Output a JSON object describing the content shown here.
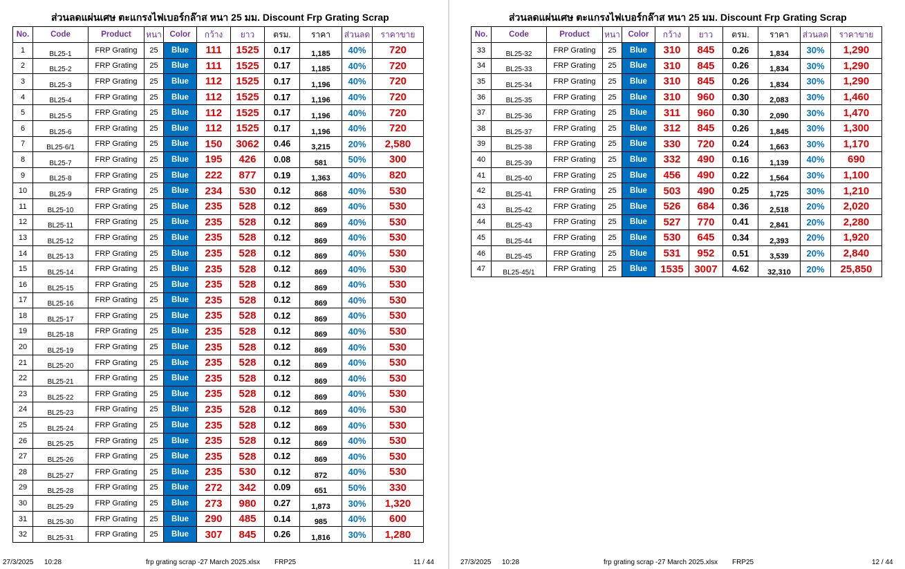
{
  "title": "ส่วนลดแผ่นเศษ ตะแกรงไฟเบอร์กล๊าส หนา 25 มม.  Discount Frp Grating Scrap",
  "headers": {
    "no": "No.",
    "code": "Code",
    "product": "Product",
    "thick": "หนา",
    "color": "Color",
    "width": "กว้าง",
    "length": "ยาว",
    "sqm": "ตรม.",
    "price": "ราคา",
    "discount": "ส่วนลด",
    "sale": "ราคาขาย"
  },
  "left_rows": [
    [
      "1",
      "BL25-1",
      "FRP Grating",
      "25",
      "Blue",
      "111",
      "1525",
      "0.17",
      "1,185",
      "40%",
      "720"
    ],
    [
      "2",
      "BL25-2",
      "FRP Grating",
      "25",
      "Blue",
      "111",
      "1525",
      "0.17",
      "1,185",
      "40%",
      "720"
    ],
    [
      "3",
      "BL25-3",
      "FRP Grating",
      "25",
      "Blue",
      "112",
      "1525",
      "0.17",
      "1,196",
      "40%",
      "720"
    ],
    [
      "4",
      "BL25-4",
      "FRP Grating",
      "25",
      "Blue",
      "112",
      "1525",
      "0.17",
      "1,196",
      "40%",
      "720"
    ],
    [
      "5",
      "BL25-5",
      "FRP Grating",
      "25",
      "Blue",
      "112",
      "1525",
      "0.17",
      "1,196",
      "40%",
      "720"
    ],
    [
      "6",
      "BL25-6",
      "FRP Grating",
      "25",
      "Blue",
      "112",
      "1525",
      "0.17",
      "1,196",
      "40%",
      "720"
    ],
    [
      "7",
      "BL25-6/1",
      "FRP Grating",
      "25",
      "Blue",
      "150",
      "3062",
      "0.46",
      "3,215",
      "20%",
      "2,580"
    ],
    [
      "8",
      "BL25-7",
      "FRP Grating",
      "25",
      "Blue",
      "195",
      "426",
      "0.08",
      "581",
      "50%",
      "300"
    ],
    [
      "9",
      "BL25-8",
      "FRP Grating",
      "25",
      "Blue",
      "222",
      "877",
      "0.19",
      "1,363",
      "40%",
      "820"
    ],
    [
      "10",
      "BL25-9",
      "FRP Grating",
      "25",
      "Blue",
      "234",
      "530",
      "0.12",
      "868",
      "40%",
      "530"
    ],
    [
      "11",
      "BL25-10",
      "FRP Grating",
      "25",
      "Blue",
      "235",
      "528",
      "0.12",
      "869",
      "40%",
      "530"
    ],
    [
      "12",
      "BL25-11",
      "FRP Grating",
      "25",
      "Blue",
      "235",
      "528",
      "0.12",
      "869",
      "40%",
      "530"
    ],
    [
      "13",
      "BL25-12",
      "FRP Grating",
      "25",
      "Blue",
      "235",
      "528",
      "0.12",
      "869",
      "40%",
      "530"
    ],
    [
      "14",
      "BL25-13",
      "FRP Grating",
      "25",
      "Blue",
      "235",
      "528",
      "0.12",
      "869",
      "40%",
      "530"
    ],
    [
      "15",
      "BL25-14",
      "FRP Grating",
      "25",
      "Blue",
      "235",
      "528",
      "0.12",
      "869",
      "40%",
      "530"
    ],
    [
      "16",
      "BL25-15",
      "FRP Grating",
      "25",
      "Blue",
      "235",
      "528",
      "0.12",
      "869",
      "40%",
      "530"
    ],
    [
      "17",
      "BL25-16",
      "FRP Grating",
      "25",
      "Blue",
      "235",
      "528",
      "0.12",
      "869",
      "40%",
      "530"
    ],
    [
      "18",
      "BL25-17",
      "FRP Grating",
      "25",
      "Blue",
      "235",
      "528",
      "0.12",
      "869",
      "40%",
      "530"
    ],
    [
      "19",
      "BL25-18",
      "FRP Grating",
      "25",
      "Blue",
      "235",
      "528",
      "0.12",
      "869",
      "40%",
      "530"
    ],
    [
      "20",
      "BL25-19",
      "FRP Grating",
      "25",
      "Blue",
      "235",
      "528",
      "0.12",
      "869",
      "40%",
      "530"
    ],
    [
      "21",
      "BL25-20",
      "FRP Grating",
      "25",
      "Blue",
      "235",
      "528",
      "0.12",
      "869",
      "40%",
      "530"
    ],
    [
      "22",
      "BL25-21",
      "FRP Grating",
      "25",
      "Blue",
      "235",
      "528",
      "0.12",
      "869",
      "40%",
      "530"
    ],
    [
      "23",
      "BL25-22",
      "FRP Grating",
      "25",
      "Blue",
      "235",
      "528",
      "0.12",
      "869",
      "40%",
      "530"
    ],
    [
      "24",
      "BL25-23",
      "FRP Grating",
      "25",
      "Blue",
      "235",
      "528",
      "0.12",
      "869",
      "40%",
      "530"
    ],
    [
      "25",
      "BL25-24",
      "FRP Grating",
      "25",
      "Blue",
      "235",
      "528",
      "0.12",
      "869",
      "40%",
      "530"
    ],
    [
      "26",
      "BL25-25",
      "FRP Grating",
      "25",
      "Blue",
      "235",
      "528",
      "0.12",
      "869",
      "40%",
      "530"
    ],
    [
      "27",
      "BL25-26",
      "FRP Grating",
      "25",
      "Blue",
      "235",
      "528",
      "0.12",
      "869",
      "40%",
      "530"
    ],
    [
      "28",
      "BL25-27",
      "FRP Grating",
      "25",
      "Blue",
      "235",
      "530",
      "0.12",
      "872",
      "40%",
      "530"
    ],
    [
      "29",
      "BL25-28",
      "FRP Grating",
      "25",
      "Blue",
      "272",
      "342",
      "0.09",
      "651",
      "50%",
      "330"
    ],
    [
      "30",
      "BL25-29",
      "FRP Grating",
      "25",
      "Blue",
      "273",
      "980",
      "0.27",
      "1,873",
      "30%",
      "1,320"
    ],
    [
      "31",
      "BL25-30",
      "FRP Grating",
      "25",
      "Blue",
      "290",
      "485",
      "0.14",
      "985",
      "40%",
      "600"
    ],
    [
      "32",
      "BL25-31",
      "FRP Grating",
      "25",
      "Blue",
      "307",
      "845",
      "0.26",
      "1,816",
      "30%",
      "1,280"
    ]
  ],
  "right_rows": [
    [
      "33",
      "BL25-32",
      "FRP Grating",
      "25",
      "Blue",
      "310",
      "845",
      "0.26",
      "1,834",
      "30%",
      "1,290"
    ],
    [
      "34",
      "BL25-33",
      "FRP Grating",
      "25",
      "Blue",
      "310",
      "845",
      "0.26",
      "1,834",
      "30%",
      "1,290"
    ],
    [
      "35",
      "BL25-34",
      "FRP Grating",
      "25",
      "Blue",
      "310",
      "845",
      "0.26",
      "1,834",
      "30%",
      "1,290"
    ],
    [
      "36",
      "BL25-35",
      "FRP Grating",
      "25",
      "Blue",
      "310",
      "960",
      "0.30",
      "2,083",
      "30%",
      "1,460"
    ],
    [
      "37",
      "BL25-36",
      "FRP Grating",
      "25",
      "Blue",
      "311",
      "960",
      "0.30",
      "2,090",
      "30%",
      "1,470"
    ],
    [
      "38",
      "BL25-37",
      "FRP Grating",
      "25",
      "Blue",
      "312",
      "845",
      "0.26",
      "1,845",
      "30%",
      "1,300"
    ],
    [
      "39",
      "BL25-38",
      "FRP Grating",
      "25",
      "Blue",
      "330",
      "720",
      "0.24",
      "1,663",
      "30%",
      "1,170"
    ],
    [
      "40",
      "BL25-39",
      "FRP Grating",
      "25",
      "Blue",
      "332",
      "490",
      "0.16",
      "1,139",
      "40%",
      "690"
    ],
    [
      "41",
      "BL25-40",
      "FRP Grating",
      "25",
      "Blue",
      "456",
      "490",
      "0.22",
      "1,564",
      "30%",
      "1,100"
    ],
    [
      "42",
      "BL25-41",
      "FRP Grating",
      "25",
      "Blue",
      "503",
      "490",
      "0.25",
      "1,725",
      "30%",
      "1,210"
    ],
    [
      "43",
      "BL25-42",
      "FRP Grating",
      "25",
      "Blue",
      "526",
      "684",
      "0.36",
      "2,518",
      "20%",
      "2,020"
    ],
    [
      "44",
      "BL25-43",
      "FRP Grating",
      "25",
      "Blue",
      "527",
      "770",
      "0.41",
      "2,841",
      "20%",
      "2,280"
    ],
    [
      "45",
      "BL25-44",
      "FRP Grating",
      "25",
      "Blue",
      "530",
      "645",
      "0.34",
      "2,393",
      "20%",
      "1,920"
    ],
    [
      "46",
      "BL25-45",
      "FRP Grating",
      "25",
      "Blue",
      "531",
      "952",
      "0.51",
      "3,539",
      "20%",
      "2,840"
    ],
    [
      "47",
      "BL25-45/1",
      "FRP Grating",
      "25",
      "Blue",
      "1535",
      "3007",
      "4.62",
      "32,310",
      "20%",
      "25,850"
    ]
  ],
  "footer_left": {
    "date": "27/3/2025",
    "time": "10:28",
    "file": "frp grating scrap -27 March 2025.xlsx",
    "sheet": "FRP25",
    "page": "11 / 44"
  },
  "footer_right": {
    "date": "27/3/2025",
    "time": "10:28",
    "file": "frp grating scrap -27 March 2025.xlsx",
    "sheet": "FRP25",
    "page": "12 / 44"
  },
  "colors": {
    "header_purple": "#7030a0",
    "red": "#e00000",
    "blue_fill": "#0070c0",
    "discount_blue": "#0070c0"
  }
}
